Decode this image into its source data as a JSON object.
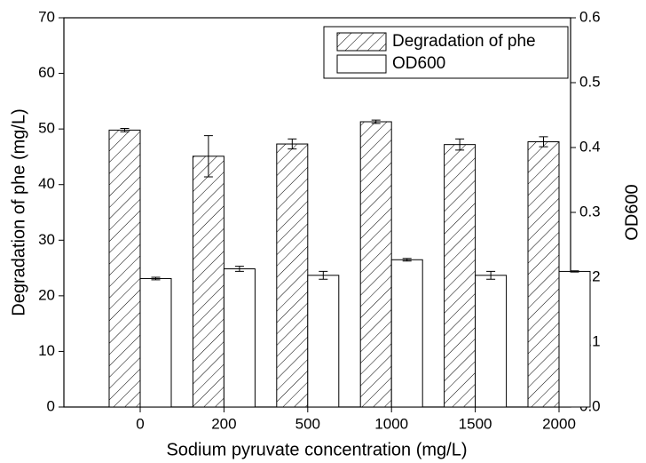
{
  "chart_data": {
    "type": "bar",
    "x_label": "Sodium pyruvate concentration (mg/L)",
    "y_label": "Degradation of phe (mg/L)",
    "y2_label": "OD600",
    "categories": [
      "0",
      "200",
      "500",
      "1000",
      "1500",
      "2000"
    ],
    "series": [
      {
        "name": "Degradation of phe",
        "color": "#000000",
        "hatch": true,
        "values": [
          49.8,
          45.1,
          47.3,
          51.3,
          47.2,
          47.7
        ],
        "errors": [
          0.3,
          3.7,
          0.9,
          0.3,
          1.0,
          0.9
        ]
      },
      {
        "name": "OD600",
        "color": "#000000",
        "hatch": false,
        "axis": "y2",
        "values": [
          0.198,
          0.213,
          0.203,
          0.227,
          0.203,
          0.209
        ],
        "errors": [
          0.002,
          0.004,
          0.006,
          0.002,
          0.006,
          0.001
        ]
      }
    ],
    "ylim": [
      0,
      70
    ],
    "yticks": [
      0,
      10,
      20,
      30,
      40,
      50,
      60,
      70
    ],
    "y2lim": [
      0,
      0.6
    ],
    "y2ticks": [
      {
        "value": 0,
        "label": "0.0"
      },
      0.1,
      0.2,
      0.3,
      0.4,
      0.5,
      0.6
    ],
    "legend": "upper right"
  }
}
